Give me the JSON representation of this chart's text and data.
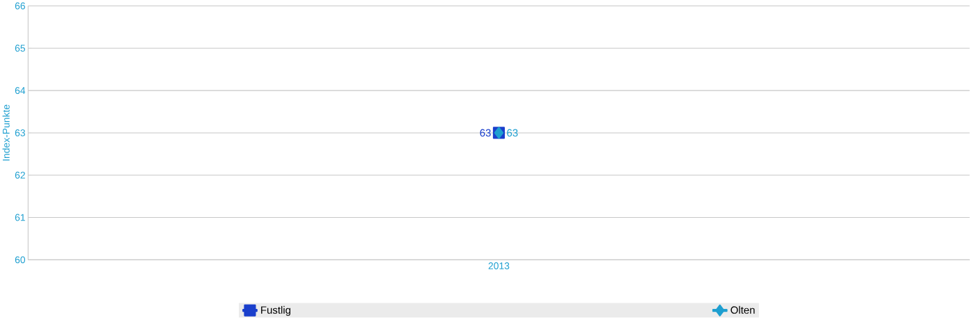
{
  "chart_data": {
    "type": "line",
    "ylabel": "Index-Punkte",
    "categories": [
      "2013"
    ],
    "series": [
      {
        "name": "Fustlig",
        "color": "#1a3fcc",
        "marker": "square",
        "values": [
          63
        ]
      },
      {
        "name": "Olten",
        "color": "#1e9fd0",
        "marker": "diamond",
        "values": [
          63
        ]
      }
    ],
    "ylim": [
      60,
      66
    ],
    "yticks": [
      60,
      61,
      62,
      63,
      64,
      65,
      66
    ],
    "grid": "y",
    "legend": "bottom",
    "data_labels": true
  }
}
